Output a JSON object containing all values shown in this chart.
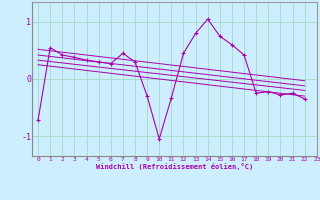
{
  "xlabel": "Windchill (Refroidissement éolien,°C)",
  "background_color": "#cceeff",
  "grid_color": "#aaddcc",
  "line_color": "#aa00aa",
  "main_x": [
    0,
    1,
    2,
    3,
    4,
    5,
    6,
    7,
    8,
    9,
    10,
    11,
    12,
    13,
    14,
    15,
    16,
    17,
    18,
    19,
    20,
    21,
    22
  ],
  "main_y": [
    -0.72,
    0.55,
    0.42,
    0.38,
    0.33,
    0.3,
    0.27,
    0.45,
    0.3,
    -0.3,
    -1.05,
    -0.33,
    0.45,
    0.8,
    1.05,
    0.75,
    0.6,
    0.42,
    -0.25,
    -0.22,
    -0.28,
    -0.25,
    -0.35
  ],
  "regression_lines": [
    {
      "x": [
        0,
        22
      ],
      "y": [
        0.52,
        -0.03
      ]
    },
    {
      "x": [
        0,
        22
      ],
      "y": [
        0.42,
        -0.12
      ]
    },
    {
      "x": [
        0,
        22
      ],
      "y": [
        0.33,
        -0.2
      ]
    },
    {
      "x": [
        0,
        22
      ],
      "y": [
        0.25,
        -0.3
      ]
    }
  ],
  "ylim": [
    -1.35,
    1.35
  ],
  "xlim": [
    -0.5,
    23.0
  ],
  "yticks": [
    -1,
    0,
    1
  ],
  "xticks": [
    0,
    1,
    2,
    3,
    4,
    5,
    6,
    7,
    8,
    9,
    10,
    11,
    12,
    13,
    14,
    15,
    16,
    17,
    18,
    19,
    20,
    21,
    22,
    23
  ]
}
